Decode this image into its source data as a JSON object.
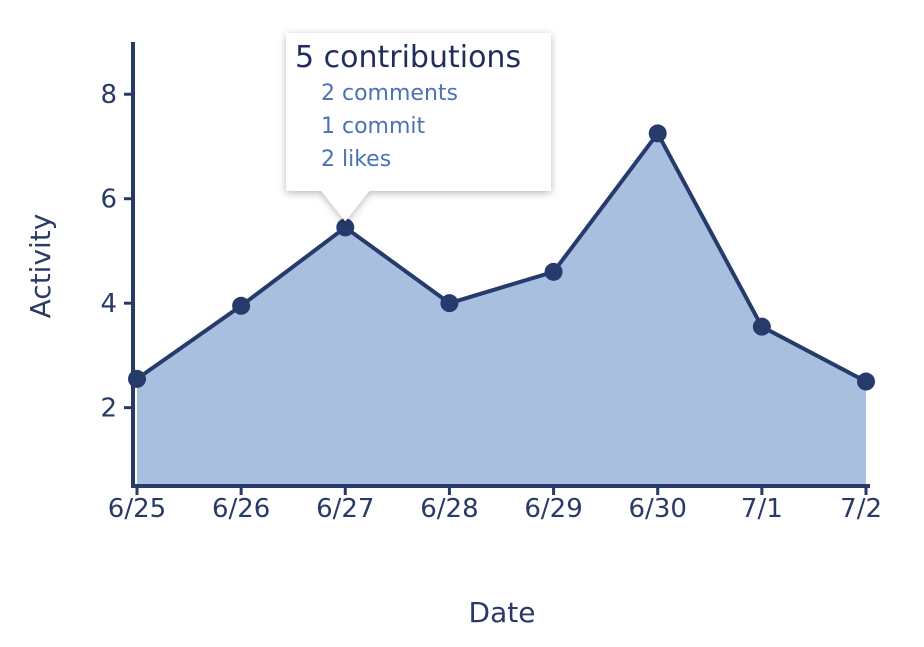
{
  "colors": {
    "axis": "#2a3a66",
    "line": "#263a6b",
    "area": "#a8bfe0",
    "tooltip_heading": "#1f2e5c",
    "tooltip_detail": "#4a72b5"
  },
  "chart_data": {
    "type": "area",
    "xlabel": "Date",
    "ylabel": "Activity",
    "ylim": [
      0.5,
      9
    ],
    "yticks": [
      2,
      4,
      6,
      8
    ],
    "categories": [
      "6/25",
      "6/26",
      "6/27",
      "6/28",
      "6/29",
      "6/30",
      "7/1",
      "7/2"
    ],
    "series": [
      {
        "values": [
          2.55,
          3.95,
          5.45,
          4.0,
          4.6,
          7.25,
          3.55,
          2.5
        ]
      }
    ],
    "grid": false,
    "legend": "none",
    "tooltip": {
      "category": "6/27",
      "heading": "5 contributions",
      "lines": [
        "2 comments",
        "1 commit",
        "2 likes"
      ]
    }
  }
}
